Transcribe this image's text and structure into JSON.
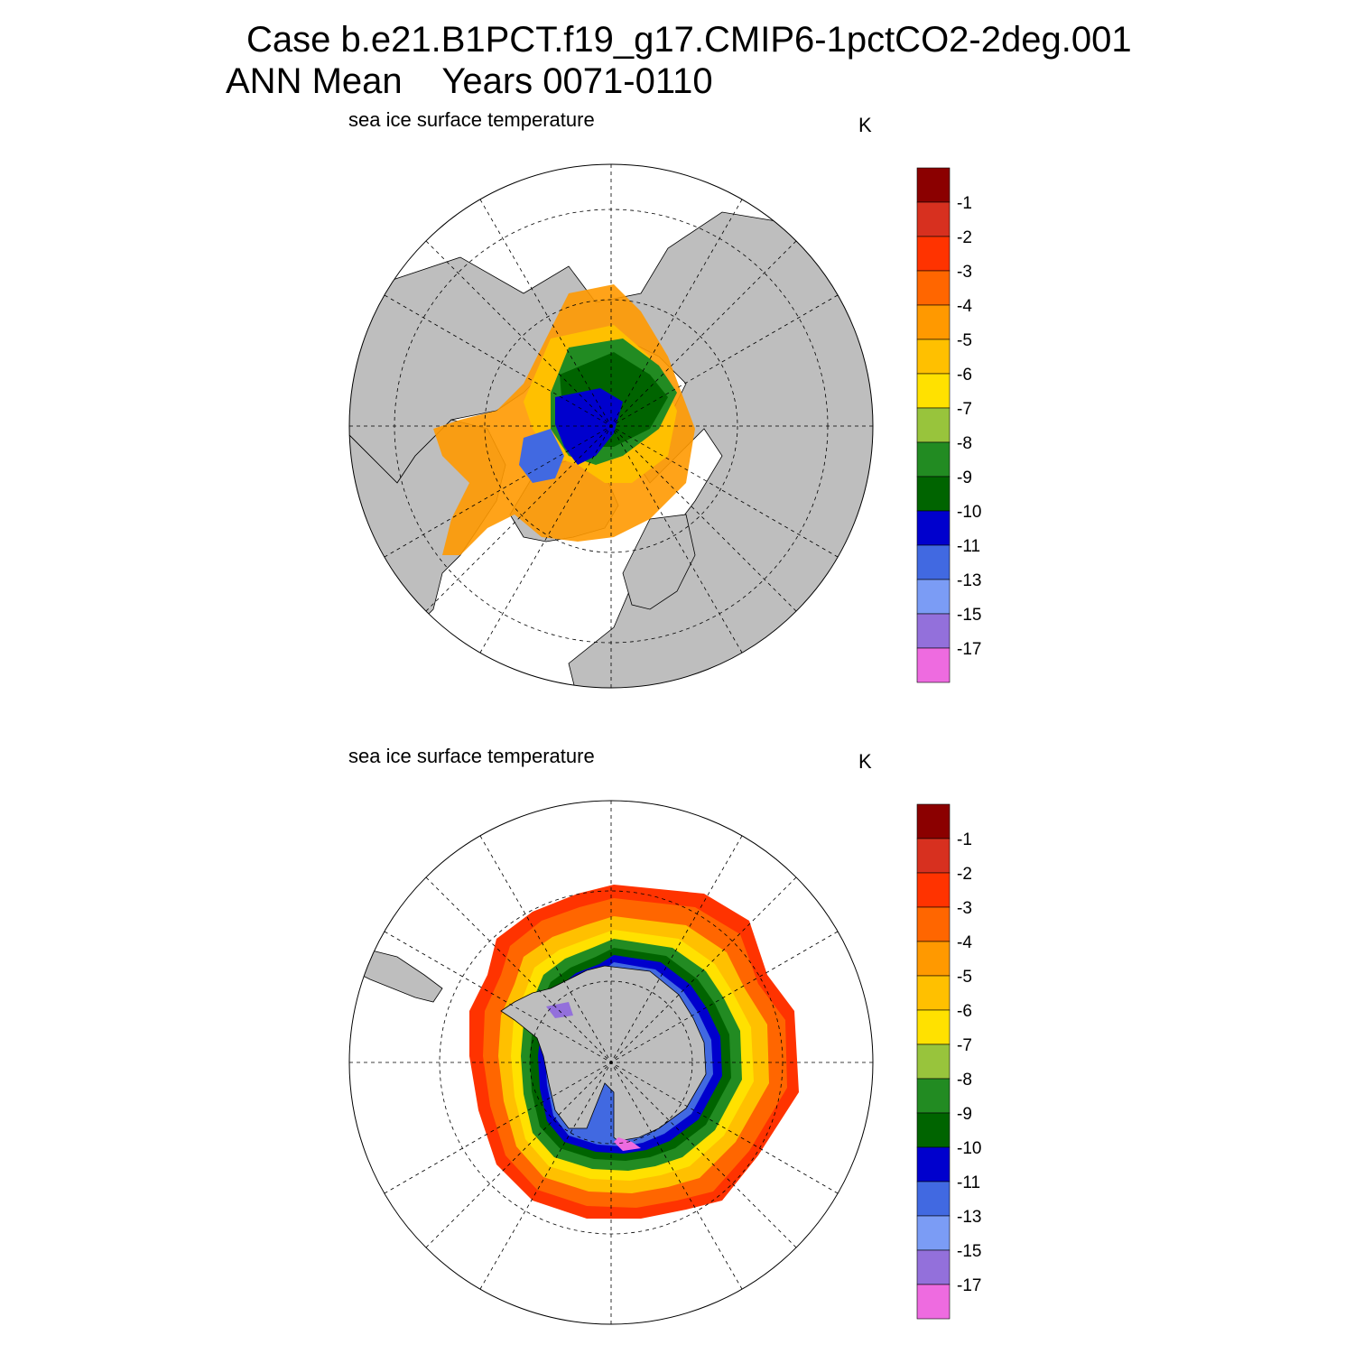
{
  "header": {
    "case_line": "Case b.e21.B1PCT.f19_g17.CMIP6-1pctCO2-2deg.001",
    "period_line": "ANN Mean    Years 0071-0110"
  },
  "colors": {
    "land": "#bebebe",
    "ocean": "#ffffff",
    "border": "#000000"
  },
  "chart_data": [
    {
      "type": "heatmap",
      "projection": "polar stereographic",
      "hemisphere": "north",
      "title": "sea ice surface temperature",
      "units": "K",
      "colorbar": {
        "levels": [
          "-1",
          "-2",
          "-3",
          "-4",
          "-5",
          "-6",
          "-7",
          "-8",
          "-9",
          "-10",
          "-11",
          "-13",
          "-15",
          "-17"
        ],
        "colors": [
          "#8b0000",
          "#d7301f",
          "#ff3300",
          "#ff6600",
          "#ff9900",
          "#ffc000",
          "#ffe100",
          "#98c43c",
          "#228b22",
          "#006400",
          "#0000cd",
          "#4169e1",
          "#7b9cf5",
          "#9370db",
          "#ee6be0"
        ]
      },
      "grid": true
    },
    {
      "type": "heatmap",
      "projection": "polar stereographic",
      "hemisphere": "south",
      "title": "sea ice surface temperature",
      "units": "K",
      "colorbar": {
        "levels": [
          "-1",
          "-2",
          "-3",
          "-4",
          "-5",
          "-6",
          "-7",
          "-8",
          "-9",
          "-10",
          "-11",
          "-13",
          "-15",
          "-17"
        ],
        "colors": [
          "#8b0000",
          "#d7301f",
          "#ff3300",
          "#ff6600",
          "#ff9900",
          "#ffc000",
          "#ffe100",
          "#98c43c",
          "#228b22",
          "#006400",
          "#0000cd",
          "#4169e1",
          "#7b9cf5",
          "#9370db",
          "#ee6be0"
        ]
      },
      "grid": true
    }
  ]
}
